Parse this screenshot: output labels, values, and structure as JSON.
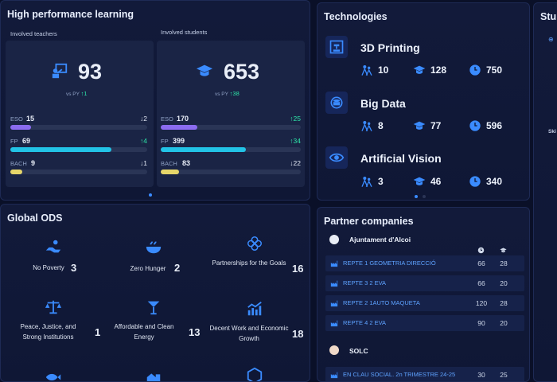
{
  "high_performance": {
    "title": "High performance learning",
    "teachers": {
      "label": "Involved teachers",
      "value": "93",
      "vs_label": "vs PY",
      "vs_delta": "1",
      "levels": [
        {
          "label": "ESO",
          "value": "15",
          "delta": "2",
          "dir": "down",
          "fill": 0.15,
          "color": "#8b6cf0"
        },
        {
          "label": "FP",
          "value": "69",
          "delta": "4",
          "dir": "up",
          "fill": 0.74,
          "color": "#22c3e6"
        },
        {
          "label": "BACH",
          "value": "9",
          "delta": "1",
          "dir": "down",
          "fill": 0.09,
          "color": "#e6d66a"
        }
      ]
    },
    "students": {
      "label": "Involved students",
      "value": "653",
      "vs_label": "vs PY",
      "vs_delta": "38",
      "levels": [
        {
          "label": "ESO",
          "value": "170",
          "delta": "25",
          "dir": "up",
          "fill": 0.26,
          "color": "#8b6cf0"
        },
        {
          "label": "FP",
          "value": "399",
          "delta": "34",
          "dir": "up",
          "fill": 0.61,
          "color": "#22c3e6"
        },
        {
          "label": "BACH",
          "value": "83",
          "delta": "22",
          "dir": "down",
          "fill": 0.13,
          "color": "#e6d66a"
        }
      ]
    }
  },
  "technologies": {
    "title": "Technologies",
    "items": [
      {
        "name": "3D Printing",
        "icon": "printer-3d-icon",
        "a": "10",
        "b": "128",
        "c": "750"
      },
      {
        "name": "Big Data",
        "icon": "database-icon",
        "a": "8",
        "b": "77",
        "c": "596"
      },
      {
        "name": "Artificial Vision",
        "icon": "eye-icon",
        "a": "3",
        "b": "46",
        "c": "340"
      }
    ]
  },
  "students_panel": {
    "title": "Stu",
    "skills_label": "Ski"
  },
  "ods": {
    "title": "Global ODS",
    "items": [
      {
        "name": "No Poverty",
        "value": "3"
      },
      {
        "name": "Zero Hunger",
        "value": "2"
      },
      {
        "name": "Partnerships for the Goals",
        "value": "16"
      },
      {
        "name": "Peace, Justice, and Strong Institutions",
        "value": "1"
      },
      {
        "name": "Affordable and Clean Energy",
        "value": "13"
      },
      {
        "name": "Decent Work and Economic Growth",
        "value": "18"
      }
    ]
  },
  "partners": {
    "title": "Partner companies",
    "groups": [
      {
        "name": "Ajuntament d'Alcoi",
        "rows": [
          {
            "name": "REPTE 1 GEOMETRIA DIRECCIÓ",
            "a": "66",
            "b": "28"
          },
          {
            "name": "REPTE 3 2 EVA",
            "a": "66",
            "b": "20"
          },
          {
            "name": "REPTE 2 1AUTO MAQUETA",
            "a": "120",
            "b": "28"
          },
          {
            "name": "REPTE 4 2 EVA",
            "a": "90",
            "b": "20"
          }
        ]
      },
      {
        "name": "SOLC",
        "rows": [
          {
            "name": "EN CLAU SOCIAL. 2n TRIMESTRE 24-25",
            "a": "30",
            "b": "25"
          }
        ]
      }
    ]
  },
  "colors": {
    "accent": "#3a8bff",
    "up": "#2ee6a8"
  }
}
